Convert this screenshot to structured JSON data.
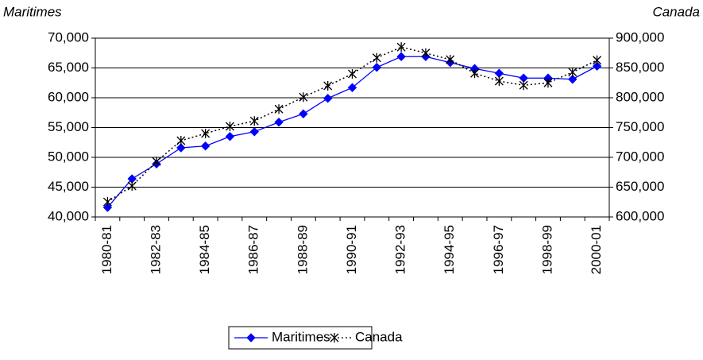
{
  "chart_data": {
    "type": "line",
    "y_label": "Maritimes",
    "y2_label": "Canada",
    "categories": [
      "1980-81",
      null,
      "1982-83",
      null,
      "1984-85",
      null,
      "1986-87",
      null,
      "1988-89",
      null,
      "1990-91",
      null,
      "1992-93",
      null,
      "1994-95",
      null,
      "1996-97",
      null,
      "1998-99",
      null,
      "2000-01"
    ],
    "series": [
      {
        "name": "Maritimes",
        "color": "#0000ff",
        "values": [
          41600,
          46400,
          48900,
          51600,
          51900,
          53500,
          54300,
          55900,
          57300,
          59900,
          61700,
          65100,
          66900,
          66900,
          65900,
          64900,
          64100,
          63300,
          63300,
          63100,
          65300
        ]
      },
      {
        "name": "Canada",
        "color": "#000000",
        "axis": "y2",
        "values": [
          625300,
          652000,
          693000,
          728000,
          740000,
          752000,
          761000,
          781000,
          801000,
          820000,
          840000,
          867000,
          885000,
          875000,
          864000,
          841000,
          828000,
          821000,
          825000,
          843000,
          863000
        ]
      }
    ],
    "ylim": [
      40000,
      70000
    ],
    "yticks": [
      {
        "value": 40000,
        "label": "40,000"
      },
      {
        "value": 45000,
        "label": "45,000"
      },
      {
        "value": 50000,
        "label": "50,000"
      },
      {
        "value": 55000,
        "label": "55,000"
      },
      {
        "value": 60000,
        "label": "60,000"
      },
      {
        "value": 65000,
        "label": "65,000"
      },
      {
        "value": 70000,
        "label": "70,000"
      }
    ],
    "y2lim": [
      600000,
      900000
    ],
    "y2ticks": [
      {
        "value": 600000,
        "label": "600,000"
      },
      {
        "value": 650000,
        "label": "650,000"
      },
      {
        "value": 700000,
        "label": "700,000"
      },
      {
        "value": 750000,
        "label": "750,000"
      },
      {
        "value": 800000,
        "label": "800,000"
      },
      {
        "value": 850000,
        "label": "850,000"
      },
      {
        "value": 900000,
        "label": "900,000"
      }
    ],
    "grid": true,
    "legend": "bottom"
  }
}
